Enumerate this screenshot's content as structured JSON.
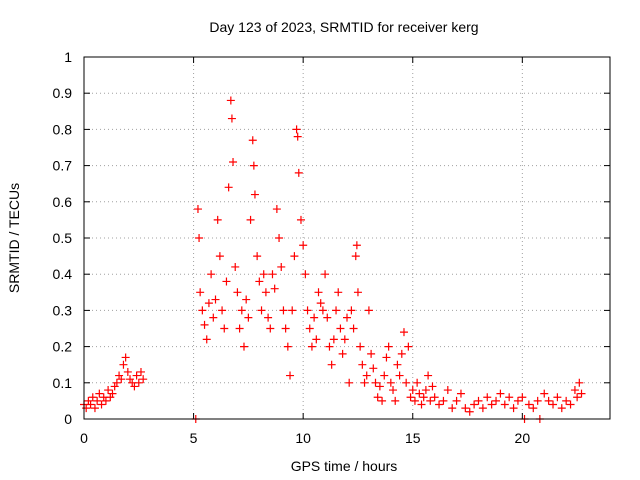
{
  "chart_data": {
    "type": "scatter",
    "title": "Day 123 of 2023, SRMTID for receiver kerg",
    "xlabel": "GPS time / hours",
    "ylabel": "SRMTID / TECUs",
    "xlim": [
      0,
      24
    ],
    "ylim": [
      0,
      1
    ],
    "xticks": [
      0,
      5,
      10,
      15,
      20
    ],
    "yticks": [
      0,
      0.1,
      0.2,
      0.3,
      0.4,
      0.5,
      0.6,
      0.7,
      0.8,
      0.9,
      1
    ],
    "grid": true,
    "marker": "+",
    "color": "#ff0000",
    "series": [
      {
        "name": "kerg",
        "points": [
          [
            0.0,
            0.04
          ],
          [
            0.1,
            0.03
          ],
          [
            0.2,
            0.05
          ],
          [
            0.3,
            0.04
          ],
          [
            0.4,
            0.06
          ],
          [
            0.5,
            0.03
          ],
          [
            0.6,
            0.05
          ],
          [
            0.7,
            0.07
          ],
          [
            0.8,
            0.04
          ],
          [
            0.9,
            0.06
          ],
          [
            1.0,
            0.05
          ],
          [
            1.1,
            0.08
          ],
          [
            1.2,
            0.06
          ],
          [
            1.3,
            0.07
          ],
          [
            1.4,
            0.09
          ],
          [
            1.5,
            0.1
          ],
          [
            1.6,
            0.12
          ],
          [
            1.7,
            0.11
          ],
          [
            1.8,
            0.15
          ],
          [
            1.9,
            0.17
          ],
          [
            2.0,
            0.13
          ],
          [
            2.1,
            0.11
          ],
          [
            2.2,
            0.1
          ],
          [
            2.3,
            0.09
          ],
          [
            2.4,
            0.12
          ],
          [
            2.5,
            0.1
          ],
          [
            2.6,
            0.13
          ],
          [
            2.7,
            0.11
          ],
          [
            5.1,
            0.0
          ],
          [
            5.2,
            0.58
          ],
          [
            5.25,
            0.5
          ],
          [
            5.3,
            0.35
          ],
          [
            5.4,
            0.3
          ],
          [
            5.5,
            0.26
          ],
          [
            5.6,
            0.22
          ],
          [
            5.7,
            0.32
          ],
          [
            5.8,
            0.4
          ],
          [
            5.9,
            0.28
          ],
          [
            6.0,
            0.33
          ],
          [
            6.1,
            0.55
          ],
          [
            6.2,
            0.45
          ],
          [
            6.3,
            0.3
          ],
          [
            6.4,
            0.25
          ],
          [
            6.5,
            0.38
          ],
          [
            6.6,
            0.64
          ],
          [
            6.7,
            0.88
          ],
          [
            6.75,
            0.83
          ],
          [
            6.8,
            0.71
          ],
          [
            6.9,
            0.42
          ],
          [
            7.0,
            0.35
          ],
          [
            7.1,
            0.25
          ],
          [
            7.2,
            0.3
          ],
          [
            7.3,
            0.2
          ],
          [
            7.4,
            0.33
          ],
          [
            7.5,
            0.28
          ],
          [
            7.6,
            0.55
          ],
          [
            7.7,
            0.77
          ],
          [
            7.75,
            0.7
          ],
          [
            7.8,
            0.62
          ],
          [
            7.9,
            0.45
          ],
          [
            8.0,
            0.38
          ],
          [
            8.1,
            0.3
          ],
          [
            8.2,
            0.4
          ],
          [
            8.3,
            0.35
          ],
          [
            8.4,
            0.28
          ],
          [
            8.5,
            0.25
          ],
          [
            8.6,
            0.4
          ],
          [
            8.7,
            0.36
          ],
          [
            8.8,
            0.58
          ],
          [
            8.9,
            0.5
          ],
          [
            9.0,
            0.42
          ],
          [
            9.1,
            0.3
          ],
          [
            9.2,
            0.25
          ],
          [
            9.3,
            0.2
          ],
          [
            9.4,
            0.12
          ],
          [
            9.5,
            0.3
          ],
          [
            9.6,
            0.45
          ],
          [
            9.7,
            0.8
          ],
          [
            9.75,
            0.78
          ],
          [
            9.8,
            0.68
          ],
          [
            9.9,
            0.55
          ],
          [
            10.0,
            0.48
          ],
          [
            10.1,
            0.4
          ],
          [
            10.2,
            0.3
          ],
          [
            10.3,
            0.25
          ],
          [
            10.4,
            0.2
          ],
          [
            10.5,
            0.28
          ],
          [
            10.6,
            0.22
          ],
          [
            10.7,
            0.35
          ],
          [
            10.8,
            0.32
          ],
          [
            10.9,
            0.3
          ],
          [
            11.0,
            0.4
          ],
          [
            11.1,
            0.28
          ],
          [
            11.2,
            0.2
          ],
          [
            11.3,
            0.15
          ],
          [
            11.4,
            0.22
          ],
          [
            11.5,
            0.3
          ],
          [
            11.6,
            0.35
          ],
          [
            11.7,
            0.25
          ],
          [
            11.8,
            0.18
          ],
          [
            11.9,
            0.22
          ],
          [
            12.0,
            0.28
          ],
          [
            12.1,
            0.1
          ],
          [
            12.2,
            0.3
          ],
          [
            12.3,
            0.25
          ],
          [
            12.4,
            0.45
          ],
          [
            12.45,
            0.48
          ],
          [
            12.5,
            0.35
          ],
          [
            12.6,
            0.2
          ],
          [
            12.7,
            0.15
          ],
          [
            12.8,
            0.1
          ],
          [
            12.9,
            0.12
          ],
          [
            13.0,
            0.3
          ],
          [
            13.1,
            0.18
          ],
          [
            13.2,
            0.14
          ],
          [
            13.3,
            0.1
          ],
          [
            13.4,
            0.06
          ],
          [
            13.5,
            0.09
          ],
          [
            13.6,
            0.05
          ],
          [
            13.7,
            0.12
          ],
          [
            13.8,
            0.17
          ],
          [
            13.9,
            0.2
          ],
          [
            14.0,
            0.1
          ],
          [
            14.1,
            0.08
          ],
          [
            14.2,
            0.05
          ],
          [
            14.3,
            0.15
          ],
          [
            14.4,
            0.12
          ],
          [
            14.5,
            0.18
          ],
          [
            14.6,
            0.24
          ],
          [
            14.7,
            0.1
          ],
          [
            14.8,
            0.2
          ],
          [
            14.9,
            0.06
          ],
          [
            15.0,
            0.08
          ],
          [
            15.1,
            0.05
          ],
          [
            15.2,
            0.1
          ],
          [
            15.3,
            0.07
          ],
          [
            15.4,
            0.04
          ],
          [
            15.5,
            0.06
          ],
          [
            15.6,
            0.08
          ],
          [
            15.7,
            0.12
          ],
          [
            15.8,
            0.05
          ],
          [
            15.9,
            0.09
          ],
          [
            16.0,
            0.06
          ],
          [
            16.2,
            0.04
          ],
          [
            16.4,
            0.05
          ],
          [
            16.6,
            0.08
          ],
          [
            16.8,
            0.03
          ],
          [
            17.0,
            0.05
          ],
          [
            17.2,
            0.07
          ],
          [
            17.4,
            0.03
          ],
          [
            17.6,
            0.02
          ],
          [
            17.8,
            0.04
          ],
          [
            18.0,
            0.05
          ],
          [
            18.2,
            0.03
          ],
          [
            18.4,
            0.06
          ],
          [
            18.6,
            0.04
          ],
          [
            18.8,
            0.05
          ],
          [
            19.0,
            0.07
          ],
          [
            19.2,
            0.04
          ],
          [
            19.4,
            0.06
          ],
          [
            19.6,
            0.03
          ],
          [
            19.8,
            0.05
          ],
          [
            20.0,
            0.06
          ],
          [
            20.1,
            0.0
          ],
          [
            20.3,
            0.04
          ],
          [
            20.5,
            0.03
          ],
          [
            20.7,
            0.05
          ],
          [
            20.8,
            0.0
          ],
          [
            21.0,
            0.07
          ],
          [
            21.2,
            0.05
          ],
          [
            21.4,
            0.04
          ],
          [
            21.6,
            0.06
          ],
          [
            21.8,
            0.03
          ],
          [
            22.0,
            0.05
          ],
          [
            22.2,
            0.04
          ],
          [
            22.4,
            0.08
          ],
          [
            22.5,
            0.06
          ],
          [
            22.6,
            0.1
          ],
          [
            22.7,
            0.07
          ]
        ]
      }
    ]
  }
}
